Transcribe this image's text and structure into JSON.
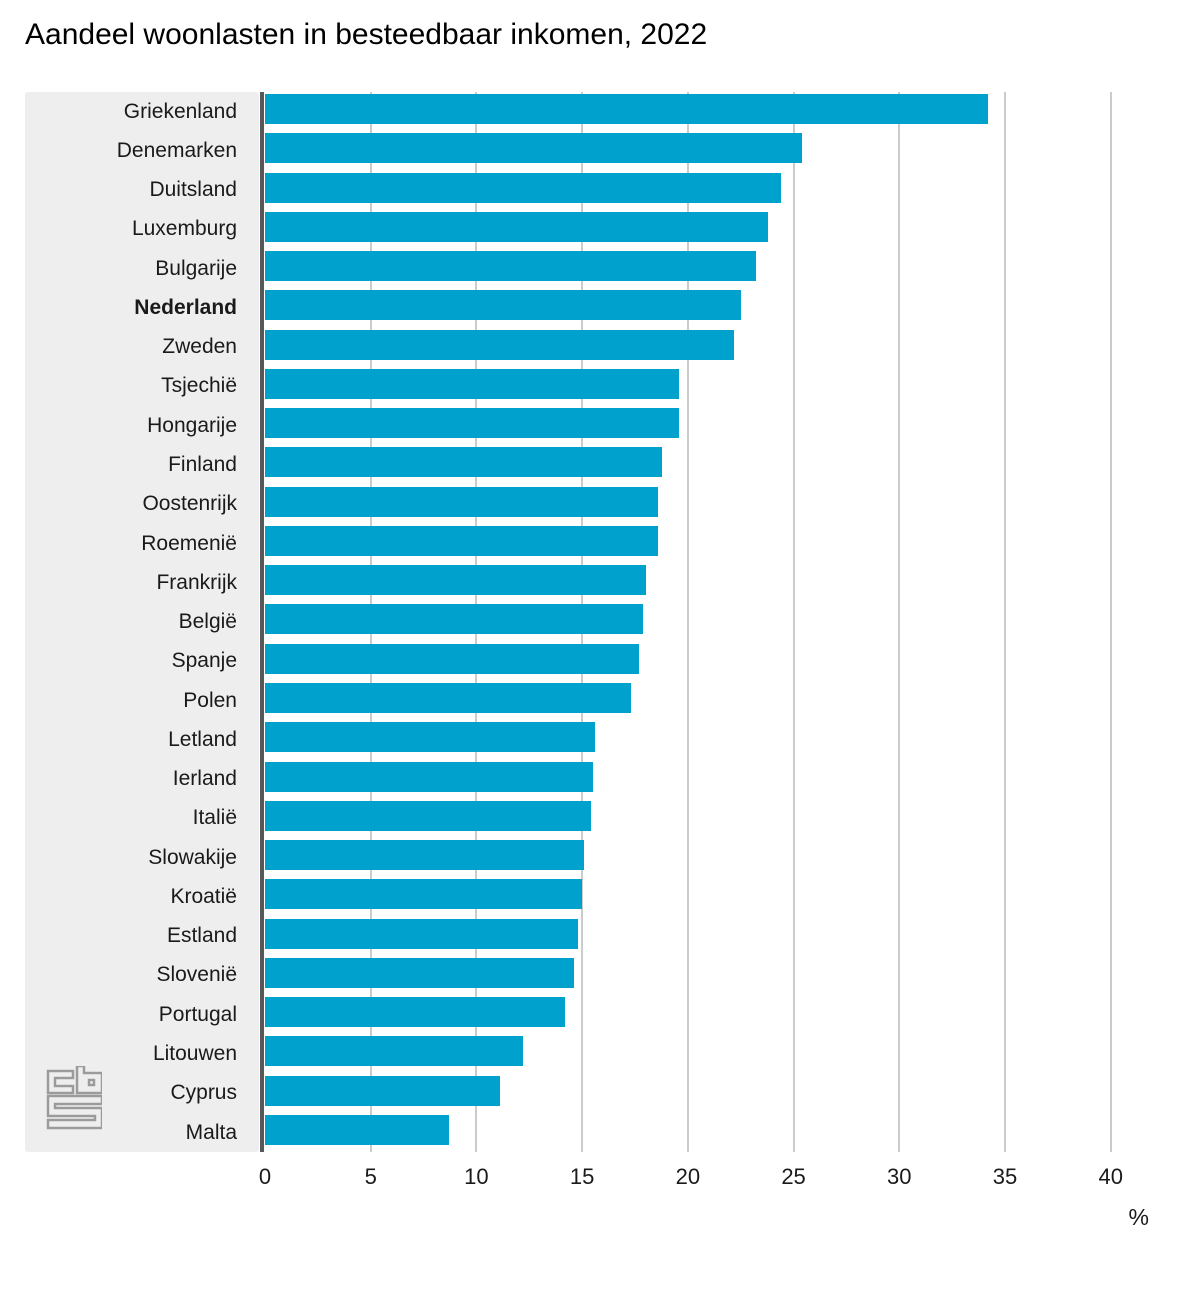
{
  "title": "Aandeel woonlasten in besteedbaar inkomen, 2022",
  "logo": {
    "name": "cbs-logo",
    "color": "#9b9b9b"
  },
  "chart_data": {
    "type": "bar",
    "orientation": "horizontal",
    "title": "Aandeel woonlasten in besteedbaar inkomen, 2022",
    "xlabel": "%",
    "ylabel": "",
    "unit_label": "%",
    "xlim": [
      0,
      42
    ],
    "xticks": [
      0,
      5,
      10,
      15,
      20,
      25,
      30,
      35,
      40
    ],
    "grid": true,
    "legend": "none",
    "bar_color": "#00a1cd",
    "highlight_category": "Nederland",
    "categories": [
      "Griekenland",
      "Denemarken",
      "Duitsland",
      "Luxemburg",
      "Bulgarije",
      "Nederland",
      "Zweden",
      "Tsjechië",
      "Hongarije",
      "Finland",
      "Oostenrijk",
      "Roemenië",
      "Frankrijk",
      "België",
      "Spanje",
      "Polen",
      "Letland",
      "Ierland",
      "Italië",
      "Slowakije",
      "Kroatië",
      "Estland",
      "Slovenië",
      "Portugal",
      "Litouwen",
      "Cyprus",
      "Malta"
    ],
    "values": [
      34.2,
      25.4,
      24.4,
      23.8,
      23.2,
      22.5,
      22.2,
      19.6,
      19.6,
      18.8,
      18.6,
      18.6,
      18.0,
      17.9,
      17.7,
      17.3,
      15.6,
      15.5,
      15.4,
      15.1,
      15.0,
      14.8,
      14.6,
      14.2,
      12.2,
      11.1,
      8.7
    ]
  }
}
